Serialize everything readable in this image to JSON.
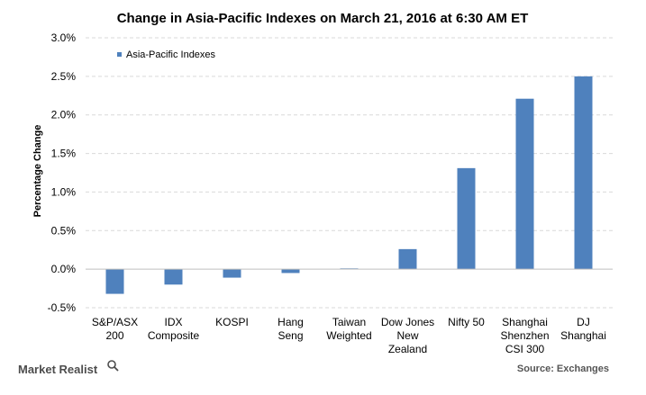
{
  "chart_data": {
    "type": "bar",
    "title": "Change in Asia-Pacific Indexes on March 21, 2016 at  6:30 AM ET",
    "ylabel": "Percentage Change",
    "xlabel": "",
    "ylim": [
      -0.5,
      3.0
    ],
    "yticks": [
      "-0.5%",
      "0.0%",
      "0.5%",
      "1.0%",
      "1.5%",
      "2.0%",
      "2.5%",
      "3.0%"
    ],
    "ytick_values": [
      -0.5,
      0.0,
      0.5,
      1.0,
      1.5,
      2.0,
      2.5,
      3.0
    ],
    "grid": "horizontal-dashed",
    "legend_position": "top-left",
    "categories": [
      [
        "S&P/ASX",
        "200"
      ],
      [
        "IDX",
        "Composite"
      ],
      [
        "KOSPI"
      ],
      [
        "Hang",
        "Seng"
      ],
      [
        "Taiwan",
        "Weighted"
      ],
      [
        "Dow Jones",
        "New",
        "Zealand"
      ],
      [
        "Nifty 50"
      ],
      [
        "Shanghai",
        "Shenzhen",
        "CSI 300"
      ],
      [
        "DJ",
        "Shanghai"
      ]
    ],
    "series": [
      {
        "name": "Asia-Pacific Indexes",
        "color": "#4f81bd",
        "values": [
          -0.32,
          -0.2,
          -0.11,
          -0.05,
          0.01,
          0.26,
          1.31,
          2.21,
          2.5
        ]
      }
    ]
  },
  "footer": {
    "brand": "Market Realist",
    "brand_icon": "magnifier-icon",
    "source": "Source: Exchanges"
  }
}
